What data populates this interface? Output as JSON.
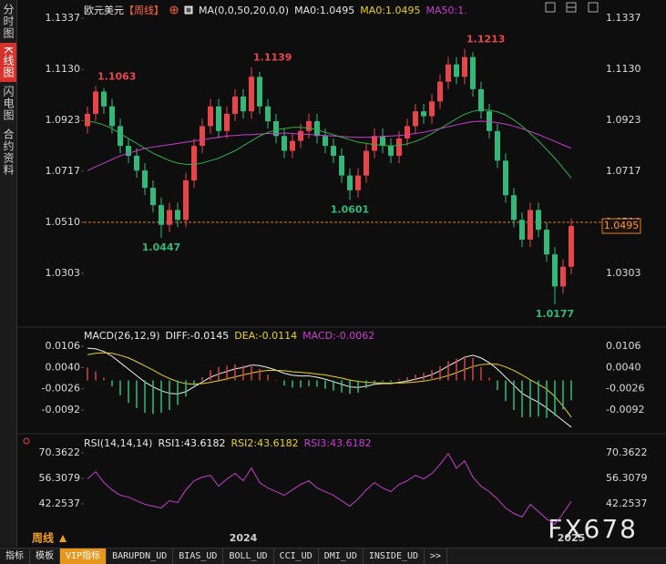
{
  "sidebar": [
    "分时图",
    "K线图",
    "闪电图",
    "合约资料"
  ],
  "header": {
    "symbol": "欧元美元",
    "period": "【周线】",
    "ma_params": "MA(0,0,50,20,0,0)",
    "legend": [
      {
        "text": "MA0:1.0495",
        "color": "#e6e6e6"
      },
      {
        "text": "MA0:1.0495",
        "color": "#e8d21a"
      }
    ]
  },
  "period_label": "周线",
  "watermark": "FX678",
  "tabs": [
    "指标",
    "模板",
    "VIP指标",
    "BARUPDN_UD",
    "BIAS_UD",
    "BOLL_UD",
    "CCI_UD",
    "DMI_UD",
    "INSIDE_UD",
    ">>"
  ],
  "chart_data": [
    {
      "type": "candlestick",
      "categories": [
        null,
        null,
        null,
        null,
        null,
        null,
        null,
        null,
        null,
        null,
        null,
        null,
        null,
        null,
        null,
        null,
        null,
        null,
        null,
        "2024",
        null,
        null,
        null,
        null,
        null,
        null,
        null,
        null,
        null,
        null,
        null,
        null,
        null,
        null,
        null,
        null,
        null,
        null,
        null,
        null,
        null,
        null,
        null,
        null,
        null,
        null,
        null,
        null,
        null,
        null,
        null,
        null,
        null,
        null,
        null,
        null,
        null,
        null,
        null,
        "2025"
      ],
      "open": [
        1.09,
        1.095,
        1.104,
        1.098,
        1.09,
        1.082,
        1.078,
        1.072,
        1.065,
        1.058,
        1.05,
        1.056,
        1.052,
        1.068,
        1.082,
        1.09,
        1.098,
        1.088,
        1.095,
        1.102,
        1.096,
        1.11,
        1.098,
        1.092,
        1.086,
        1.08,
        1.084,
        1.088,
        1.092,
        1.086,
        1.082,
        1.078,
        1.07,
        1.064,
        1.07,
        1.08,
        1.086,
        1.082,
        1.078,
        1.085,
        1.09,
        1.096,
        1.094,
        1.1,
        1.108,
        1.115,
        1.11,
        1.118,
        1.105,
        1.096,
        1.088,
        1.076,
        1.062,
        1.052,
        1.044,
        1.056,
        1.048,
        1.038,
        1.025,
        1.033
      ],
      "high": [
        1.098,
        1.1063,
        1.1055,
        1.101,
        1.093,
        1.085,
        1.081,
        1.075,
        1.068,
        1.061,
        1.059,
        1.059,
        1.071,
        1.085,
        1.093,
        1.101,
        1.101,
        1.098,
        1.105,
        1.105,
        1.1139,
        1.112,
        1.101,
        1.095,
        1.089,
        1.087,
        1.091,
        1.095,
        1.095,
        1.089,
        1.085,
        1.081,
        1.073,
        1.073,
        1.083,
        1.089,
        1.089,
        1.085,
        1.088,
        1.093,
        1.099,
        1.099,
        1.103,
        1.111,
        1.118,
        1.118,
        1.1213,
        1.12,
        1.108,
        1.099,
        1.091,
        1.079,
        1.065,
        1.055,
        1.059,
        1.059,
        1.051,
        1.041,
        1.036,
        1.0525
      ],
      "low": [
        1.087,
        1.092,
        1.095,
        1.087,
        1.079,
        1.075,
        1.069,
        1.062,
        1.055,
        1.0447,
        1.047,
        1.049,
        1.049,
        1.065,
        1.079,
        1.087,
        1.085,
        1.085,
        1.092,
        1.093,
        1.093,
        1.095,
        1.089,
        1.083,
        1.077,
        1.077,
        1.081,
        1.085,
        1.083,
        1.079,
        1.075,
        1.067,
        1.0601,
        1.061,
        1.067,
        1.077,
        1.079,
        1.075,
        1.075,
        1.082,
        1.087,
        1.091,
        1.091,
        1.097,
        1.105,
        1.107,
        1.107,
        1.102,
        1.093,
        1.085,
        1.073,
        1.059,
        1.049,
        1.041,
        1.041,
        1.045,
        1.035,
        1.0177,
        1.022,
        1.03
      ],
      "close": [
        1.095,
        1.104,
        1.098,
        1.09,
        1.082,
        1.078,
        1.072,
        1.065,
        1.058,
        1.05,
        1.056,
        1.052,
        1.068,
        1.082,
        1.09,
        1.098,
        1.088,
        1.095,
        1.102,
        1.096,
        1.11,
        1.098,
        1.092,
        1.086,
        1.08,
        1.084,
        1.088,
        1.092,
        1.086,
        1.082,
        1.078,
        1.07,
        1.064,
        1.07,
        1.08,
        1.086,
        1.082,
        1.078,
        1.085,
        1.09,
        1.096,
        1.094,
        1.1,
        1.108,
        1.115,
        1.11,
        1.118,
        1.105,
        1.096,
        1.088,
        1.076,
        1.062,
        1.052,
        1.044,
        1.056,
        1.048,
        1.038,
        1.025,
        1.033,
        1.0495
      ],
      "up_color": "#e8454a",
      "down_color": "#34b87a",
      "series": [
        {
          "name": "MA50:1.",
          "color": "#c83ccf",
          "values": [
            1.072,
            1.0735,
            1.075,
            1.0765,
            1.078,
            1.079,
            1.08,
            1.081,
            1.0815,
            1.082,
            1.0825,
            1.083,
            1.0835,
            1.084,
            1.0845,
            1.085,
            1.0855,
            1.086,
            1.0862,
            1.0865,
            1.0865,
            1.0868,
            1.087,
            1.087,
            1.0872,
            1.087,
            1.0868,
            1.0866,
            1.0864,
            1.0862,
            1.086,
            1.0858,
            1.0856,
            1.0855,
            1.0855,
            1.0856,
            1.0858,
            1.086,
            1.0862,
            1.0865,
            1.087,
            1.0875,
            1.0882,
            1.089,
            1.0898,
            1.0905,
            1.0912,
            1.0918,
            1.092,
            1.0918,
            1.0914,
            1.0908,
            1.09,
            1.089,
            1.0878,
            1.0866,
            1.0852,
            1.0838,
            1.0824,
            1.081
          ]
        },
        {
          "color": "#2fae4a",
          "values": [
            1.092,
            1.0915,
            1.0905,
            1.089,
            1.087,
            1.085,
            1.083,
            1.081,
            1.079,
            1.0775,
            1.076,
            1.075,
            1.0745,
            1.0745,
            1.075,
            1.076,
            1.077,
            1.0785,
            1.08,
            1.082,
            1.084,
            1.086,
            1.0875,
            1.0885,
            1.089,
            1.0895,
            1.0895,
            1.0892,
            1.0885,
            1.0875,
            1.0865,
            1.0855,
            1.0845,
            1.0835,
            1.083,
            1.0825,
            1.0822,
            1.082,
            1.0822,
            1.0828,
            1.0838,
            1.0852,
            1.087,
            1.089,
            1.091,
            1.093,
            1.0948,
            1.096,
            1.0966,
            1.0965,
            1.0958,
            1.0945,
            1.0925,
            1.09,
            1.087,
            1.084,
            1.0805,
            1.077,
            1.073,
            1.069
          ]
        }
      ],
      "annotations": [
        1.1063,
        1.1139,
        1.1213,
        1.0447,
        1.0601,
        1.0177
      ],
      "ref_line": 1.051,
      "ylim": [
        1.01,
        1.1367
      ],
      "yticks": [
        1.1337,
        {
          "value": 1.113,
          "label": "1.1130"
        },
        1.0923,
        1.0717,
        {
          "value": 1.051,
          "label": "1.0510"
        },
        1.0303
      ]
    },
    {
      "type": "macd",
      "title": "MACD(26,12,9)",
      "up_color": "#d8403f",
      "down_color": "#2fbf7e",
      "series": [
        {
          "name": "DIFF:-0.0145",
          "color": "#f0f0f0",
          "values": [
            0.01,
            0.0098,
            0.009,
            0.0075,
            0.0055,
            0.0035,
            0.0015,
            -0.0005,
            -0.002,
            -0.0032,
            -0.004,
            -0.0042,
            -0.0035,
            -0.002,
            -0.0005,
            0.001,
            0.002,
            0.0028,
            0.0036,
            0.004,
            0.0048,
            0.0046,
            0.004,
            0.0032,
            0.0022,
            0.0016,
            0.0014,
            0.0014,
            0.001,
            0.0004,
            -0.0004,
            -0.0012,
            -0.002,
            -0.0022,
            -0.0018,
            -0.0012,
            -0.001,
            -0.001,
            -0.0006,
            -0.0002,
            0.0004,
            0.001,
            0.0018,
            0.003,
            0.0045,
            0.0058,
            0.0072,
            0.0078,
            0.007,
            0.0055,
            0.0035,
            0.001,
            -0.0015,
            -0.004,
            -0.0055,
            -0.0068,
            -0.0085,
            -0.0105,
            -0.0125,
            -0.0145
          ]
        },
        {
          "name": "DEA:-0.0114",
          "color": "#e8d21a",
          "values": [
            0.008,
            0.0084,
            0.0086,
            0.0084,
            0.0078,
            0.007,
            0.0058,
            0.0045,
            0.0032,
            0.0018,
            0.0006,
            -0.0004,
            -0.001,
            -0.0012,
            -0.001,
            -0.0006,
            -0.0001,
            0.0005,
            0.0011,
            0.0017,
            0.0023,
            0.0028,
            0.0031,
            0.0031,
            0.003,
            0.0027,
            0.0025,
            0.0023,
            0.002,
            0.0017,
            0.0012,
            0.0007,
            0.0001,
            -0.0003,
            -0.0006,
            -0.0007,
            -0.0008,
            -0.0008,
            -0.0008,
            -0.0007,
            -0.0005,
            -0.0002,
            0.0002,
            0.0008,
            0.0015,
            0.0024,
            0.0034,
            0.0043,
            0.0049,
            0.0051,
            0.005,
            0.0042,
            0.0031,
            0.0017,
            0.0002,
            -0.0012,
            -0.0027,
            -0.005,
            -0.008,
            -0.0114
          ]
        },
        {
          "name": "MACD:-0.0062",
          "color": "#c83ccf",
          "type": "histogram",
          "values": [
            0.004,
            0.0028,
            0.0008,
            -0.0018,
            -0.0046,
            -0.007,
            -0.0086,
            -0.01,
            -0.0104,
            -0.01,
            -0.0092,
            -0.0076,
            -0.005,
            -0.0016,
            0.001,
            0.0032,
            0.0042,
            0.0046,
            0.005,
            0.0046,
            0.005,
            0.0036,
            0.0018,
            0.0002,
            -0.0016,
            -0.0022,
            -0.0022,
            -0.0018,
            -0.002,
            -0.0026,
            -0.0032,
            -0.0038,
            -0.0042,
            -0.0038,
            -0.0024,
            -0.001,
            -0.0004,
            -0.0004,
            0.0004,
            0.001,
            0.0018,
            0.0024,
            0.0032,
            0.0044,
            0.006,
            0.0068,
            0.0076,
            0.007,
            0.0042,
            0.0008,
            -0.003,
            -0.0064,
            -0.0092,
            -0.0114,
            -0.0114,
            -0.0112,
            -0.0116,
            -0.011,
            -0.009,
            -0.0062
          ]
        }
      ],
      "ylim": [
        -0.0171,
        0.014
      ],
      "yticks": [
        0.0106,
        {
          "value": 0.004,
          "label": "0.0040"
        },
        -0.0026,
        -0.0092
      ]
    },
    {
      "type": "rsi",
      "title": "RSI(14,14,14)",
      "series": [
        {
          "name": "RSI1:43.6182",
          "color": "#f0f0f0"
        },
        {
          "name": "RSI2:43.6182",
          "color": "#e8d21a"
        },
        {
          "name": "RSI3:43.6182",
          "color": "#c83ccf",
          "values": [
            56,
            60,
            54,
            50,
            47,
            46,
            44,
            42,
            41,
            40,
            44,
            43,
            50,
            55,
            57,
            58,
            52,
            56,
            59,
            55,
            62,
            54,
            51,
            49,
            47,
            50,
            53,
            55,
            51,
            49,
            47,
            44,
            41,
            45,
            50,
            54,
            51,
            49,
            53,
            55,
            58,
            56,
            59,
            64,
            70,
            62,
            66,
            57,
            52,
            49,
            45,
            40,
            37,
            35,
            42,
            38,
            34,
            31,
            37,
            43.6182
          ]
        }
      ],
      "ylim": [
        22.7,
        76.4
      ],
      "yticks": [
        70.3622,
        56.3079,
        42.2537
      ]
    }
  ]
}
